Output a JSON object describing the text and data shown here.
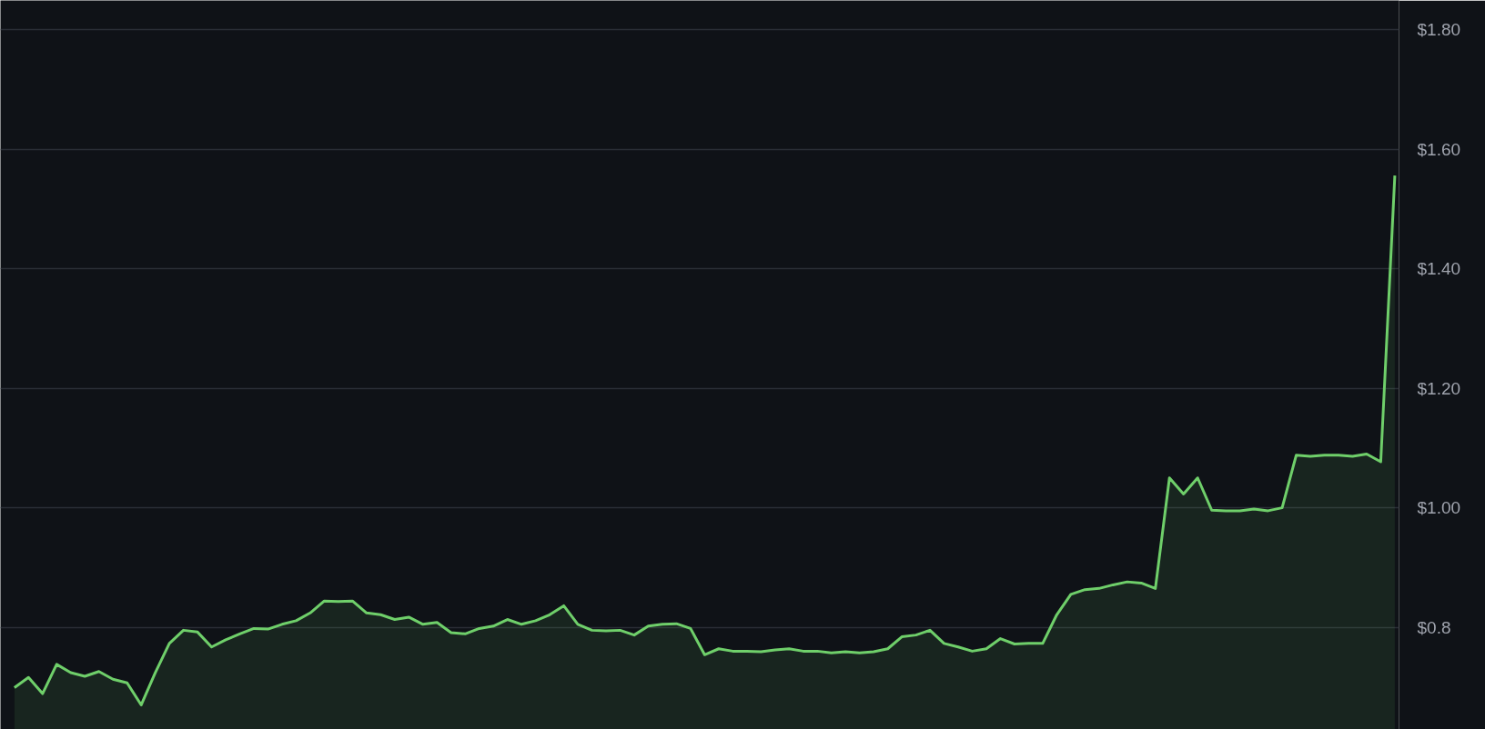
{
  "chart_data": {
    "type": "area",
    "categories": [
      null,
      null,
      null,
      null,
      null,
      null,
      null,
      null,
      null,
      null,
      null,
      null,
      null,
      null,
      null,
      null,
      null,
      null,
      null,
      null,
      null,
      null,
      null,
      null,
      null,
      null,
      null,
      null,
      null,
      null,
      null,
      null,
      null,
      null,
      null,
      null,
      null,
      null,
      null,
      null,
      null,
      null,
      null,
      null,
      null,
      null,
      null,
      null,
      null,
      null,
      null,
      null,
      null,
      null,
      null,
      null,
      null,
      null,
      null,
      null,
      null,
      null,
      null,
      null,
      null,
      null,
      null,
      null,
      null,
      null,
      null,
      null,
      null,
      null,
      null,
      null,
      null,
      null,
      null,
      null,
      null,
      null,
      null,
      null,
      null,
      null,
      null,
      null,
      null,
      null,
      null,
      null,
      null,
      null,
      null,
      null,
      null,
      null,
      null
    ],
    "series": [
      {
        "color": "#6fcf6a",
        "values": [
          0.699,
          0.716,
          0.689,
          0.738,
          0.724,
          0.718,
          0.726,
          0.713,
          0.707,
          0.67,
          0.724,
          0.773,
          0.795,
          0.792,
          0.767,
          0.779,
          0.789,
          0.798,
          0.797,
          0.805,
          0.811,
          0.824,
          0.844,
          0.843,
          0.844,
          0.824,
          0.821,
          0.813,
          0.817,
          0.805,
          0.808,
          0.791,
          0.789,
          0.798,
          0.802,
          0.813,
          0.805,
          0.811,
          0.821,
          0.836,
          0.805,
          0.795,
          0.794,
          0.795,
          0.787,
          0.802,
          0.805,
          0.806,
          0.798,
          0.754,
          0.764,
          0.76,
          0.76,
          0.759,
          0.762,
          0.764,
          0.76,
          0.76,
          0.757,
          0.759,
          0.757,
          0.759,
          0.764,
          0.784,
          0.787,
          0.795,
          0.773,
          0.767,
          0.76,
          0.764,
          0.781,
          0.772,
          0.773,
          0.773,
          0.821,
          0.855,
          0.863,
          0.865,
          0.871,
          0.876,
          0.874,
          0.865,
          1.05,
          1.023,
          1.05,
          0.996,
          0.995,
          0.995,
          0.998,
          0.995,
          1.0,
          1.088,
          1.086,
          1.088,
          1.088,
          1.086,
          1.09,
          1.077,
          1.556
        ]
      }
    ],
    "ylim": [
      0.629,
      1.849
    ],
    "yticks": [
      {
        "value": 0.8,
        "label": "$0.8"
      },
      {
        "value": 1.0,
        "label": "$1.00"
      },
      {
        "value": 1.2,
        "label": "$1.20"
      },
      {
        "value": 1.4,
        "label": "$1.40"
      },
      {
        "value": 1.6,
        "label": "$1.60"
      },
      {
        "value": 1.8,
        "label": "$1.80"
      }
    ],
    "grid": "y",
    "tick_labels": "y"
  }
}
